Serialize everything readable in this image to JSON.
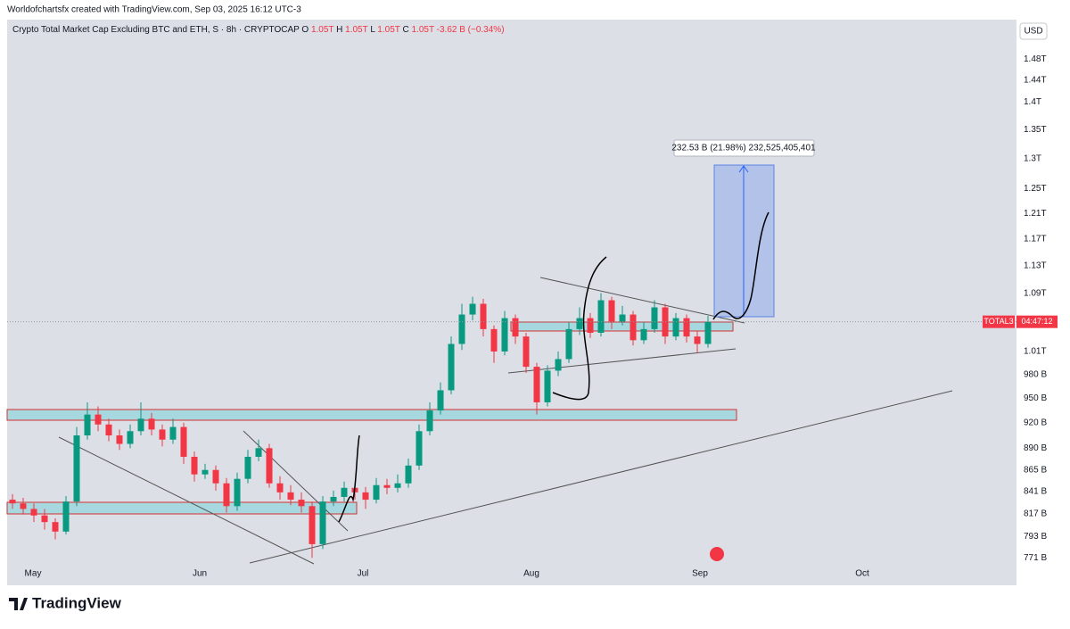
{
  "chart_data": {
    "type": "candlestick",
    "header": "Worldofchartsfx created with TradingView.com, Sep 03, 2025 16:12 UTC-3",
    "title": "Crypto Total Market Cap Excluding BTC and ETH, S · 8h · CRYPTOCAP",
    "legend_keys": [
      "O",
      "H",
      "L",
      "C"
    ],
    "legend_values": [
      1050,
      1050,
      1050,
      1050
    ],
    "legend_value_labels": [
      "1.05T",
      "1.05T",
      "1.05T",
      "1.05T"
    ],
    "change": "-3.62 B (−0.34%)",
    "currency": "USD",
    "symbol": "TOTAL3",
    "countdown": "04:47:12",
    "last_price": 1050,
    "measure_label": "232.53 B (21.98%) 232,525,405,401",
    "brand": "TradingView",
    "time_labels": [
      "May",
      "Jun",
      "Jul",
      "Aug",
      "Sep",
      "Oct"
    ],
    "up_color": "#089981",
    "down_color": "#f23645",
    "log_scale": true,
    "grid": false,
    "ylim": [
      765,
      1559
    ],
    "yticks": [
      {
        "value": 1480,
        "label": "1.48T"
      },
      {
        "value": 1440,
        "label": "1.44T"
      },
      {
        "value": 1400,
        "label": "1.4T"
      },
      {
        "value": 1350,
        "label": "1.35T"
      },
      {
        "value": 1300,
        "label": "1.3T"
      },
      {
        "value": 1250,
        "label": "1.25T"
      },
      {
        "value": 1210,
        "label": "1.21T"
      },
      {
        "value": 1170,
        "label": "1.17T"
      },
      {
        "value": 1130,
        "label": "1.13T"
      },
      {
        "value": 1090,
        "label": "1.09T"
      },
      {
        "value": 1010,
        "label": "1.01T"
      },
      {
        "value": 980,
        "label": "980 B"
      },
      {
        "value": 950,
        "label": "950 B"
      },
      {
        "value": 920,
        "label": "920 B"
      },
      {
        "value": 890,
        "label": "890 B"
      },
      {
        "value": 865,
        "label": "865 B"
      },
      {
        "value": 841,
        "label": "841 B"
      },
      {
        "value": 817,
        "label": "817 B"
      },
      {
        "value": 793,
        "label": "793 B"
      },
      {
        "value": 771,
        "label": "771 B"
      }
    ],
    "open": [
      832,
      828,
      822,
      815,
      808,
      798,
      830,
      905,
      930,
      918,
      905,
      895,
      910,
      925,
      912,
      900,
      915,
      880,
      860,
      865,
      850,
      825,
      855,
      880,
      890,
      850,
      840,
      832,
      825,
      785,
      830,
      835,
      845,
      840,
      832,
      848,
      845,
      850,
      870,
      910,
      935,
      960,
      1020,
      1060,
      1075,
      1040,
      1010,
      1055,
      1030,
      990,
      945,
      985,
      1000,
      1040,
      1055,
      1035,
      1080,
      1050,
      1060,
      1025,
      1040,
      1070,
      1030,
      1055,
      1030,
      1020
    ],
    "high": [
      838,
      834,
      828,
      822,
      812,
      836,
      915,
      945,
      940,
      925,
      912,
      918,
      945,
      932,
      918,
      925,
      920,
      886,
      872,
      870,
      856,
      862,
      888,
      900,
      895,
      858,
      848,
      840,
      830,
      836,
      842,
      852,
      850,
      846,
      856,
      855,
      860,
      878,
      918,
      945,
      970,
      1030,
      1075,
      1085,
      1082,
      1045,
      1065,
      1060,
      1035,
      995,
      992,
      1010,
      1050,
      1070,
      1062,
      1090,
      1085,
      1072,
      1065,
      1050,
      1080,
      1075,
      1062,
      1060,
      1038,
      1058
    ],
    "low": [
      822,
      816,
      808,
      800,
      790,
      795,
      825,
      900,
      910,
      898,
      888,
      890,
      905,
      905,
      892,
      895,
      872,
      852,
      855,
      842,
      818,
      820,
      850,
      875,
      845,
      832,
      826,
      818,
      771,
      780,
      825,
      830,
      832,
      822,
      828,
      838,
      840,
      845,
      865,
      905,
      930,
      955,
      1012,
      1052,
      1030,
      995,
      1005,
      1020,
      982,
      930,
      940,
      978,
      995,
      1032,
      1028,
      1030,
      1040,
      1045,
      1018,
      1020,
      1035,
      1020,
      1025,
      1022,
      1008,
      1015
    ],
    "close": [
      828,
      822,
      815,
      808,
      798,
      830,
      905,
      930,
      918,
      905,
      895,
      910,
      925,
      912,
      900,
      915,
      880,
      860,
      865,
      850,
      825,
      855,
      880,
      890,
      850,
      840,
      832,
      825,
      785,
      830,
      835,
      845,
      840,
      832,
      848,
      845,
      850,
      870,
      910,
      935,
      960,
      1020,
      1060,
      1075,
      1040,
      1010,
      1055,
      1030,
      990,
      945,
      985,
      1000,
      1040,
      1055,
      1035,
      1080,
      1050,
      1060,
      1025,
      1040,
      1070,
      1030,
      1055,
      1030,
      1020,
      1050
    ]
  }
}
